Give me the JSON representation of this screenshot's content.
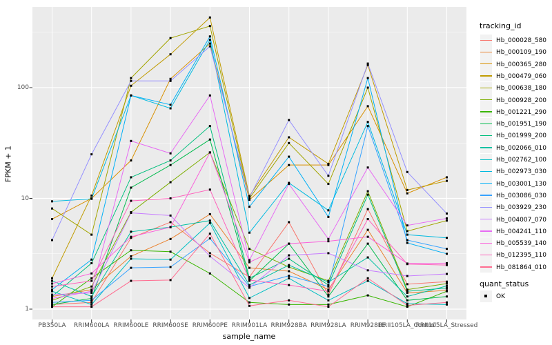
{
  "figure": {
    "background": "#ffffff",
    "panel_background": "#EBEBEB",
    "grid_color": "#FFFFFF",
    "tick_color": "#333333",
    "tick_text_color": "#4D4D4D",
    "point_color": "#000000",
    "legend_key_background": "#F2F2F2"
  },
  "axes": {
    "x_title": "sample_name",
    "y_title": "FPKM + 1"
  },
  "legend": {
    "tracking_title": "tracking_id",
    "quant_title": "quant_status",
    "quant_label": "OK"
  },
  "chart_data": {
    "type": "line",
    "title": "",
    "xlabel": "sample_name",
    "ylabel": "FPKM + 1",
    "y_scale": "log10",
    "y_major_ticks": [
      1,
      10,
      100
    ],
    "y_tick_labels": [
      "1",
      "10",
      "100"
    ],
    "y_minor_ticks": [
      3.162,
      31.62,
      316.2
    ],
    "ylim": [
      0.81,
      540
    ],
    "grid": true,
    "legend_position": "right",
    "point_shape": "small-black-square",
    "categories": [
      "PB350LA",
      "RRIM600LA",
      "RRIM600LE",
      "RRIM600SE",
      "RRIM600PE",
      "RRIM901LA",
      "RRIM928BA",
      "RRIM928LA",
      "RRIM928LE",
      "RRII105LA_Control",
      "RRII105LA_Stressed"
    ],
    "series": [
      {
        "name": "Hb_000028_580",
        "color": "#F8766D",
        "values": [
          1.1,
          1.15,
          4.4,
          6.1,
          3.2,
          1.95,
          6.1,
          1.35,
          8.0,
          1.68,
          1.77
        ]
      },
      {
        "name": "Hb_000109_190",
        "color": "#EA8331",
        "values": [
          1.3,
          1.5,
          3.0,
          4.3,
          7.2,
          2.36,
          2.2,
          1.5,
          5.2,
          1.4,
          1.48
        ]
      },
      {
        "name": "Hb_000365_280",
        "color": "#D89000",
        "values": [
          6.5,
          10.0,
          22,
          120,
          250,
          9.7,
          20,
          20,
          68,
          11.1,
          15.5
        ]
      },
      {
        "name": "Hb_000479_060",
        "color": "#C09B00",
        "values": [
          1.9,
          10.6,
          104,
          200,
          430,
          10.5,
          35.6,
          20.5,
          160,
          11.9,
          14.4
        ]
      },
      {
        "name": "Hb_000638_180",
        "color": "#A3A500",
        "values": [
          8.1,
          4.7,
          122,
          280,
          360,
          10.0,
          31.6,
          13.5,
          100,
          5.06,
          6.3
        ]
      },
      {
        "name": "Hb_000928_200",
        "color": "#7CAE00",
        "values": [
          1.2,
          1.6,
          7.5,
          14,
          26,
          3.5,
          2.4,
          1.8,
          11.6,
          1.5,
          1.7
        ]
      },
      {
        "name": "Hb_001221_290",
        "color": "#39B600",
        "values": [
          1.05,
          1.9,
          3.4,
          3.3,
          2.1,
          1.15,
          1.1,
          1.1,
          1.33,
          1.05,
          1.45
        ]
      },
      {
        "name": "Hb_001951_190",
        "color": "#00BB4E",
        "values": [
          1.1,
          1.25,
          12.5,
          20,
          34,
          1.8,
          3.9,
          1.3,
          3.9,
          1.2,
          1.3
        ]
      },
      {
        "name": "Hb_001999_200",
        "color": "#00BF7D",
        "values": [
          1.3,
          2.6,
          15.5,
          22,
          45,
          1.9,
          2.85,
          1.65,
          10.8,
          1.45,
          1.55
        ]
      },
      {
        "name": "Hb_002066_010",
        "color": "#00C1A3",
        "values": [
          1.8,
          1.3,
          5.0,
          5.5,
          6.3,
          1.65,
          2.5,
          1.75,
          2.93,
          1.3,
          1.62
        ]
      },
      {
        "name": "Hb_002762_100",
        "color": "#00BFC4",
        "values": [
          1.45,
          1.1,
          2.85,
          2.8,
          6.0,
          1.26,
          1.9,
          1.2,
          1.8,
          1.12,
          1.1
        ]
      },
      {
        "name": "Hb_002973_030",
        "color": "#00BAE0",
        "values": [
          9.4,
          9.9,
          85,
          65,
          270,
          4.9,
          13.8,
          7.8,
          49,
          4.7,
          4.4
        ]
      },
      {
        "name": "Hb_003001_130",
        "color": "#00B0F6",
        "values": [
          1.5,
          2.8,
          85,
          70,
          290,
          8.4,
          23.8,
          6.8,
          122,
          3.96,
          3.16
        ]
      },
      {
        "name": "Hb_003086_030",
        "color": "#35A2FF",
        "values": [
          1.15,
          1.2,
          2.36,
          2.4,
          4.35,
          1.6,
          2.0,
          1.6,
          45,
          4.2,
          3.5
        ]
      },
      {
        "name": "Hb_003929_230",
        "color": "#9590FF",
        "values": [
          4.2,
          25,
          115,
          115,
          236,
          10.2,
          51,
          16,
          165,
          17.3,
          7.3
        ]
      },
      {
        "name": "Hb_004007_070",
        "color": "#C77CFF",
        "values": [
          1.35,
          1.4,
          7.4,
          7.0,
          3.0,
          1.56,
          3.06,
          3.2,
          2.24,
          1.99,
          2.08
        ]
      },
      {
        "name": "Hb_004241_110",
        "color": "#E76BF3",
        "values": [
          1.25,
          1.45,
          33,
          25.5,
          85,
          2.77,
          13.5,
          4.3,
          19,
          5.7,
          6.6
        ]
      },
      {
        "name": "Hb_005539_140",
        "color": "#FA62DB",
        "values": [
          1.7,
          2.1,
          4.5,
          5.5,
          26,
          2.65,
          3.9,
          4.1,
          4.5,
          2.58,
          2.6
        ]
      },
      {
        "name": "Hb_012395_110",
        "color": "#FF62BC",
        "values": [
          1.6,
          1.8,
          9.5,
          10,
          12,
          1.83,
          1.65,
          1.45,
          6.5,
          2.55,
          2.5
        ]
      },
      {
        "name": "Hb_081864_010",
        "color": "#FF6C90",
        "values": [
          1.05,
          1.05,
          1.8,
          1.83,
          4.8,
          1.07,
          1.2,
          1.05,
          1.9,
          1.08,
          1.15
        ]
      }
    ]
  }
}
